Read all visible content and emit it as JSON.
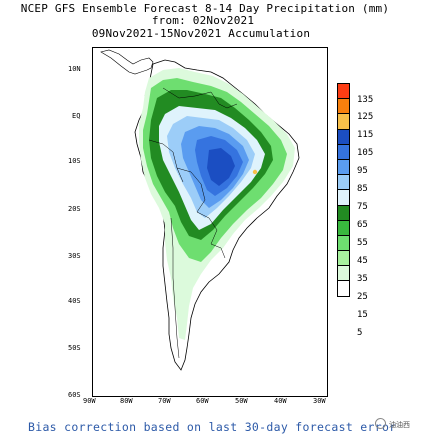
{
  "title": {
    "line1": "NCEP GFS Ensemble Forecast 8-14 Day Precipitation (mm)",
    "line2": "from: 02Nov2021",
    "line3": "09Nov2021-15Nov2021 Accumulation"
  },
  "lat_labels": [
    "10N",
    "EQ",
    "10S",
    "20S",
    "30S",
    "40S",
    "50S",
    "60S"
  ],
  "lon_labels": [
    "90W",
    "80W",
    "70W",
    "60W",
    "50W",
    "40W",
    "30W"
  ],
  "legend": {
    "labels": [
      "135",
      "125",
      "115",
      "105",
      "95",
      "85",
      "75",
      "65",
      "55",
      "45",
      "35",
      "25",
      "15",
      "5"
    ],
    "colors": [
      "#fc3d14",
      "#f8800d",
      "#f8c04a",
      "#1b4ec2",
      "#3573df",
      "#5a9cf0",
      "#9ccdf8",
      "#dff3fc",
      "#228b22",
      "#39b83e",
      "#6ede70",
      "#a7f29e",
      "#dcfadc",
      "#ffffff"
    ]
  },
  "footer": "Bias correction based on last 30-day forecast error",
  "watermark": "油油西"
}
